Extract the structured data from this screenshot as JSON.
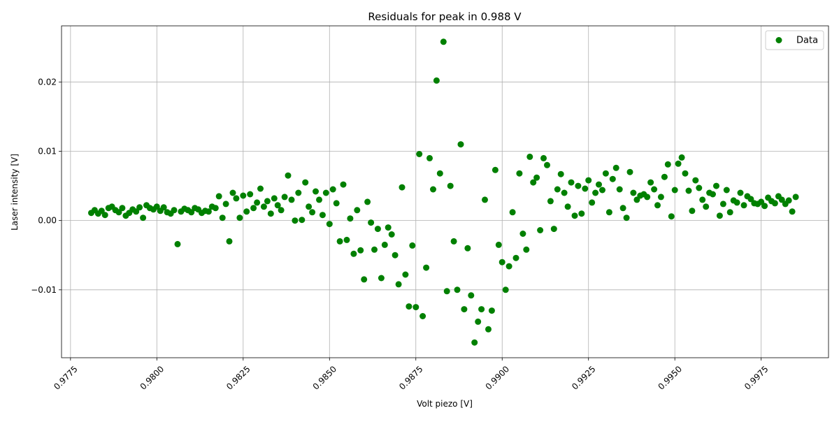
{
  "chart_data": {
    "type": "scatter",
    "title": "Residuals for peak in 0.988 V",
    "xlabel": "Volt piezo [V]",
    "ylabel": "Laser intensity [V]",
    "xlim": [
      0.97724,
      0.99945
    ],
    "ylim": [
      -0.0198,
      0.0281
    ],
    "xticks": [
      "0.9775",
      "0.9800",
      "0.9825",
      "0.9850",
      "0.9875",
      "0.9900",
      "0.9925",
      "0.9950",
      "0.9975"
    ],
    "xtick_values": [
      0.9775,
      0.98,
      0.9825,
      0.985,
      0.9875,
      0.99,
      0.9925,
      0.995,
      0.9975
    ],
    "yticks": [
      "−0.01",
      "0.00",
      "0.01",
      "0.02"
    ],
    "ytick_values": [
      -0.01,
      0.0,
      0.01,
      0.02
    ],
    "grid": true,
    "legend_position": "upper-right",
    "series": [
      {
        "name": "Data",
        "color": "#008000",
        "marker": "circle",
        "points": [
          [
            0.9781,
            0.0011
          ],
          [
            0.9782,
            0.0015
          ],
          [
            0.9783,
            0.001
          ],
          [
            0.9784,
            0.0014
          ],
          [
            0.9785,
            0.0008
          ],
          [
            0.9786,
            0.0018
          ],
          [
            0.9787,
            0.002
          ],
          [
            0.9788,
            0.0015
          ],
          [
            0.9789,
            0.0012
          ],
          [
            0.979,
            0.0018
          ],
          [
            0.9791,
            0.0007
          ],
          [
            0.9792,
            0.0011
          ],
          [
            0.9793,
            0.0016
          ],
          [
            0.9794,
            0.0013
          ],
          [
            0.9795,
            0.0019
          ],
          [
            0.9796,
            0.0004
          ],
          [
            0.9797,
            0.0022
          ],
          [
            0.9798,
            0.0018
          ],
          [
            0.9799,
            0.0016
          ],
          [
            0.98,
            0.002
          ],
          [
            0.9801,
            0.0014
          ],
          [
            0.9802,
            0.0019
          ],
          [
            0.9803,
            0.0012
          ],
          [
            0.9804,
            0.001
          ],
          [
            0.9805,
            0.0015
          ],
          [
            0.9806,
            -0.0034
          ],
          [
            0.9807,
            0.0013
          ],
          [
            0.9808,
            0.0017
          ],
          [
            0.9809,
            0.0015
          ],
          [
            0.981,
            0.0012
          ],
          [
            0.9811,
            0.0018
          ],
          [
            0.9812,
            0.0016
          ],
          [
            0.9813,
            0.0011
          ],
          [
            0.9814,
            0.0014
          ],
          [
            0.9815,
            0.0013
          ],
          [
            0.9816,
            0.002
          ],
          [
            0.9817,
            0.0018
          ],
          [
            0.9818,
            0.0035
          ],
          [
            0.9819,
            0.0004
          ],
          [
            0.982,
            0.0024
          ],
          [
            0.9821,
            -0.003
          ],
          [
            0.9822,
            0.004
          ],
          [
            0.9823,
            0.0032
          ],
          [
            0.9824,
            0.0004
          ],
          [
            0.9825,
            0.0036
          ],
          [
            0.9826,
            0.0013
          ],
          [
            0.9827,
            0.0038
          ],
          [
            0.9828,
            0.0018
          ],
          [
            0.9829,
            0.0026
          ],
          [
            0.983,
            0.0046
          ],
          [
            0.9831,
            0.002
          ],
          [
            0.9832,
            0.0028
          ],
          [
            0.9833,
            0.001
          ],
          [
            0.9834,
            0.0032
          ],
          [
            0.9835,
            0.0022
          ],
          [
            0.9836,
            0.0015
          ],
          [
            0.9837,
            0.0034
          ],
          [
            0.9838,
            0.0065
          ],
          [
            0.9839,
            0.003
          ],
          [
            0.984,
            0.0
          ],
          [
            0.9841,
            0.004
          ],
          [
            0.9842,
            0.0001
          ],
          [
            0.9843,
            0.0055
          ],
          [
            0.9844,
            0.002
          ],
          [
            0.9845,
            0.0012
          ],
          [
            0.9846,
            0.0042
          ],
          [
            0.9847,
            0.003
          ],
          [
            0.9848,
            0.0008
          ],
          [
            0.9849,
            0.004
          ],
          [
            0.985,
            -0.0005
          ],
          [
            0.9851,
            0.0045
          ],
          [
            0.9852,
            0.0025
          ],
          [
            0.9853,
            -0.003
          ],
          [
            0.9854,
            0.0052
          ],
          [
            0.9855,
            -0.0028
          ],
          [
            0.9856,
            0.0003
          ],
          [
            0.9857,
            -0.0048
          ],
          [
            0.9858,
            0.0015
          ],
          [
            0.9859,
            -0.0043
          ],
          [
            0.986,
            -0.0085
          ],
          [
            0.9861,
            0.0027
          ],
          [
            0.9862,
            -0.0003
          ],
          [
            0.9863,
            -0.0042
          ],
          [
            0.9864,
            -0.0012
          ],
          [
            0.9865,
            -0.0083
          ],
          [
            0.9866,
            -0.0035
          ],
          [
            0.9867,
            -0.001
          ],
          [
            0.9868,
            -0.002
          ],
          [
            0.9869,
            -0.005
          ],
          [
            0.987,
            -0.0092
          ],
          [
            0.9871,
            0.0048
          ],
          [
            0.9872,
            -0.0078
          ],
          [
            0.9873,
            -0.0124
          ],
          [
            0.9874,
            -0.0036
          ],
          [
            0.9875,
            -0.0125
          ],
          [
            0.9876,
            0.0096
          ],
          [
            0.9877,
            -0.0138
          ],
          [
            0.9878,
            -0.0068
          ],
          [
            0.9879,
            0.009
          ],
          [
            0.988,
            0.0045
          ],
          [
            0.9881,
            0.0202
          ],
          [
            0.9882,
            0.0068
          ],
          [
            0.9883,
            0.0258
          ],
          [
            0.9884,
            -0.0102
          ],
          [
            0.9885,
            0.005
          ],
          [
            0.9886,
            -0.003
          ],
          [
            0.9887,
            -0.01
          ],
          [
            0.9888,
            0.011
          ],
          [
            0.9889,
            -0.0128
          ],
          [
            0.989,
            -0.004
          ],
          [
            0.9891,
            -0.0108
          ],
          [
            0.9892,
            -0.0176
          ],
          [
            0.9893,
            -0.0146
          ],
          [
            0.9894,
            -0.0128
          ],
          [
            0.9895,
            0.003
          ],
          [
            0.9896,
            -0.0157
          ],
          [
            0.9897,
            -0.013
          ],
          [
            0.9898,
            0.0073
          ],
          [
            0.9899,
            -0.0035
          ],
          [
            0.99,
            -0.006
          ],
          [
            0.9901,
            -0.01
          ],
          [
            0.9902,
            -0.0066
          ],
          [
            0.9903,
            0.0012
          ],
          [
            0.9904,
            -0.0054
          ],
          [
            0.9905,
            0.0068
          ],
          [
            0.9906,
            -0.0019
          ],
          [
            0.9907,
            -0.0042
          ],
          [
            0.9908,
            0.0092
          ],
          [
            0.9909,
            0.0055
          ],
          [
            0.991,
            0.0062
          ],
          [
            0.9911,
            -0.0014
          ],
          [
            0.9912,
            0.009
          ],
          [
            0.9913,
            0.008
          ],
          [
            0.9914,
            0.0028
          ],
          [
            0.9915,
            -0.0012
          ],
          [
            0.9916,
            0.0045
          ],
          [
            0.9917,
            0.0067
          ],
          [
            0.9918,
            0.004
          ],
          [
            0.9919,
            0.002
          ],
          [
            0.992,
            0.0055
          ],
          [
            0.9921,
            0.0007
          ],
          [
            0.9922,
            0.005
          ],
          [
            0.9923,
            0.001
          ],
          [
            0.9924,
            0.0046
          ],
          [
            0.9925,
            0.0058
          ],
          [
            0.9926,
            0.0026
          ],
          [
            0.9927,
            0.004
          ],
          [
            0.9928,
            0.0052
          ],
          [
            0.9929,
            0.0044
          ],
          [
            0.993,
            0.0068
          ],
          [
            0.9931,
            0.0012
          ],
          [
            0.9932,
            0.006
          ],
          [
            0.9933,
            0.0076
          ],
          [
            0.9934,
            0.0045
          ],
          [
            0.9935,
            0.0018
          ],
          [
            0.9936,
            0.0004
          ],
          [
            0.9937,
            0.007
          ],
          [
            0.9938,
            0.004
          ],
          [
            0.9939,
            0.003
          ],
          [
            0.994,
            0.0036
          ],
          [
            0.9941,
            0.0038
          ],
          [
            0.9942,
            0.0034
          ],
          [
            0.9943,
            0.0055
          ],
          [
            0.9944,
            0.0045
          ],
          [
            0.9945,
            0.0022
          ],
          [
            0.9946,
            0.0034
          ],
          [
            0.9947,
            0.0063
          ],
          [
            0.9948,
            0.0081
          ],
          [
            0.9949,
            0.0006
          ],
          [
            0.995,
            0.0044
          ],
          [
            0.9951,
            0.0082
          ],
          [
            0.9952,
            0.0091
          ],
          [
            0.9953,
            0.0068
          ],
          [
            0.9954,
            0.0043
          ],
          [
            0.9955,
            0.0014
          ],
          [
            0.9956,
            0.0058
          ],
          [
            0.9957,
            0.0047
          ],
          [
            0.9958,
            0.003
          ],
          [
            0.9959,
            0.002
          ],
          [
            0.996,
            0.004
          ],
          [
            0.9961,
            0.0038
          ],
          [
            0.9962,
            0.005
          ],
          [
            0.9963,
            0.0007
          ],
          [
            0.9964,
            0.0024
          ],
          [
            0.9965,
            0.0044
          ],
          [
            0.9966,
            0.0012
          ],
          [
            0.9967,
            0.0029
          ],
          [
            0.9968,
            0.0026
          ],
          [
            0.9969,
            0.004
          ],
          [
            0.997,
            0.0022
          ],
          [
            0.9971,
            0.0035
          ],
          [
            0.9972,
            0.0031
          ],
          [
            0.9973,
            0.0025
          ],
          [
            0.9974,
            0.0024
          ],
          [
            0.9975,
            0.0027
          ],
          [
            0.9976,
            0.0021
          ],
          [
            0.9977,
            0.0033
          ],
          [
            0.9978,
            0.0028
          ],
          [
            0.9979,
            0.0025
          ],
          [
            0.998,
            0.0035
          ],
          [
            0.9981,
            0.003
          ],
          [
            0.9982,
            0.0024
          ],
          [
            0.9983,
            0.0029
          ],
          [
            0.9984,
            0.0013
          ],
          [
            0.9985,
            0.0034
          ]
        ]
      }
    ]
  }
}
